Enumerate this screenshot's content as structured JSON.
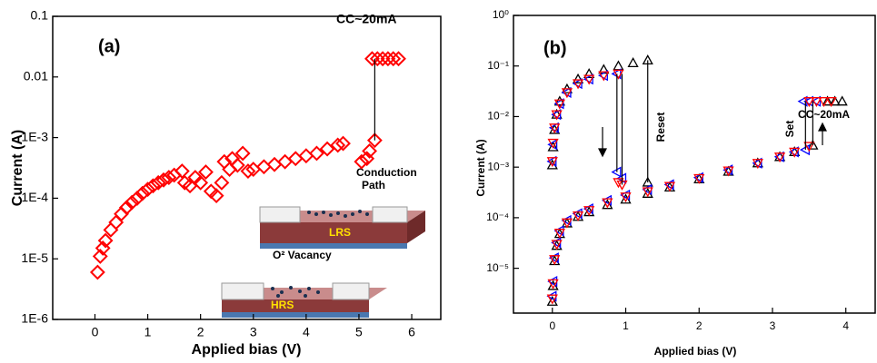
{
  "chart_data": [
    {
      "type": "scatter",
      "log_y": true,
      "label": "(a)",
      "annotations": [
        "CC~20mA"
      ],
      "inset_labels": [
        "Conduction",
        "Path",
        "LRS",
        "O² Vacancy",
        "HRS"
      ],
      "x_label": "Applied bias (V)",
      "y_label": "Current (A)",
      "xlim": [
        -0.8,
        6.55
      ],
      "xticks": [
        0,
        1,
        2,
        3,
        4,
        5,
        6
      ],
      "ylim": [
        1e-06,
        0.1
      ],
      "yticks": [
        {
          "value": 1e-06,
          "label": "1E-6"
        },
        {
          "value": 1e-05,
          "label": "1E-5"
        },
        {
          "value": 0.0001,
          "label": "1E-4"
        },
        {
          "value": 0.001,
          "label": "1E-3"
        },
        0.01,
        0.1
      ],
      "series": [
        {
          "color": "#ff0000",
          "marker": "diamond",
          "x": [
            0.05,
            0.1,
            0.15,
            0.2,
            0.3,
            0.4,
            0.5,
            0.6,
            0.7,
            0.8,
            0.9,
            1.0,
            1.1,
            1.2,
            1.3,
            1.4,
            1.5,
            1.65,
            1.7,
            1.8,
            1.9,
            2.0,
            2.1,
            2.2,
            2.3,
            2.4,
            2.45,
            2.55,
            2.6,
            2.7,
            2.8,
            2.9,
            3.0,
            3.2,
            3.4,
            3.6,
            3.8,
            4.0,
            4.2,
            4.4,
            4.6,
            4.7,
            5.05,
            5.15,
            5.2,
            5.3,
            5.25,
            5.35,
            5.45,
            5.55,
            5.65,
            5.75
          ],
          "values": [
            6e-06,
            1.1e-05,
            1.5e-05,
            2e-05,
            3e-05,
            4e-05,
            5.5e-05,
            7e-05,
            8.5e-05,
            0.0001,
            0.00012,
            0.00014,
            0.00016,
            0.00018,
            0.0002,
            0.00022,
            0.00024,
            0.00028,
            0.00018,
            0.00016,
            0.00022,
            0.00018,
            0.00027,
            0.00013,
            0.00011,
            0.00018,
            0.0004,
            0.0003,
            0.00045,
            0.00035,
            0.00055,
            0.00028,
            0.0003,
            0.00033,
            0.00036,
            0.0004,
            0.00045,
            0.0005,
            0.00055,
            0.00065,
            0.00075,
            0.0008,
            0.0004,
            0.00045,
            0.0006,
            0.0009,
            0.02,
            0.02,
            0.02,
            0.02,
            0.02,
            0.02
          ]
        },
        {
          "color": "#000000",
          "mode": "line",
          "x": [
            5.3,
            5.3
          ],
          "values": [
            0.0009,
            0.02
          ]
        }
      ]
    },
    {
      "type": "scatter",
      "log_y": true,
      "label": "(b)",
      "annotations": [
        "CC~20mA",
        "Reset",
        "Set"
      ],
      "x_label": "Applied bias (V)",
      "y_label": "Current (A)",
      "xlim": [
        -0.53,
        4.4
      ],
      "xticks": [
        0,
        1,
        2,
        3,
        4
      ],
      "ylim": [
        1.3e-06,
        1
      ],
      "yticks": [
        {
          "value": 1e-05,
          "label": "10⁻⁵"
        },
        {
          "value": 0.0001,
          "label": "10⁻⁴"
        },
        {
          "value": 0.001,
          "label": "10⁻³"
        },
        {
          "value": 0.01,
          "label": "10⁻²"
        },
        {
          "value": 0.1,
          "label": "10⁻¹"
        },
        {
          "value": 1,
          "label": "10⁰"
        }
      ],
      "series": [
        {
          "color": "#000000",
          "marker": "tri-up",
          "x": [
            0,
            0.01,
            0.03,
            0.06,
            0.1,
            0.2,
            0.35,
            0.5,
            0.75,
            1.0,
            1.3,
            1.6,
            2.0,
            2.4,
            2.8,
            3.1,
            3.3,
            3.55,
            3.75,
            3.85,
            3.95,
            0,
            0.01,
            0.03,
            0.06,
            0.1,
            0.2,
            0.35,
            0.5,
            0.7,
            0.9,
            1.1,
            1.3,
            1.3
          ],
          "values": [
            2.2e-06,
            4.5e-06,
            1.4e-05,
            2.8e-05,
            4.8e-05,
            7.8e-05,
            0.000105,
            0.00013,
            0.00018,
            0.00023,
            0.0003,
            0.0004,
            0.00058,
            0.00082,
            0.0012,
            0.0016,
            0.002,
            0.0027,
            0.02,
            0.02,
            0.02,
            0.0011,
            0.0025,
            0.0055,
            0.011,
            0.02,
            0.035,
            0.055,
            0.07,
            0.085,
            0.1,
            0.115,
            0.13,
            0.0005
          ]
        },
        {
          "color": "#0000ff",
          "marker": "tri-left",
          "x": [
            0,
            0.01,
            0.03,
            0.06,
            0.1,
            0.2,
            0.35,
            0.5,
            0.75,
            1.0,
            1.3,
            1.6,
            2.0,
            2.4,
            2.8,
            3.1,
            3.3,
            3.45,
            3.42,
            3.5,
            3.6,
            0,
            0.01,
            0.03,
            0.06,
            0.1,
            0.2,
            0.35,
            0.5,
            0.7,
            0.88,
            0.88,
            0.95
          ],
          "values": [
            2.8e-06,
            5.5e-06,
            1.6e-05,
            3.2e-05,
            5.5e-05,
            8.8e-05,
            0.00012,
            0.00015,
            0.00022,
            0.00028,
            0.00036,
            0.00045,
            0.00062,
            0.00088,
            0.0012,
            0.0016,
            0.002,
            0.0022,
            0.02,
            0.02,
            0.02,
            0.0013,
            0.0028,
            0.006,
            0.011,
            0.018,
            0.03,
            0.045,
            0.055,
            0.065,
            0.07,
            0.0008,
            0.0006
          ]
        },
        {
          "color": "#ff0000",
          "marker": "tri-down",
          "x": [
            0,
            0.01,
            0.03,
            0.06,
            0.1,
            0.2,
            0.35,
            0.5,
            0.75,
            1.0,
            1.3,
            1.6,
            2.0,
            2.4,
            2.8,
            3.1,
            3.3,
            3.5,
            3.5,
            3.6,
            3.7,
            3.8,
            0,
            0.01,
            0.03,
            0.06,
            0.1,
            0.2,
            0.35,
            0.5,
            0.7,
            0.9,
            0.95,
            0.9
          ],
          "values": [
            2.5e-06,
            5e-06,
            1.5e-05,
            3e-05,
            5e-05,
            8e-05,
            0.00011,
            0.00014,
            0.0002,
            0.00026,
            0.00033,
            0.00042,
            0.0006,
            0.00085,
            0.0012,
            0.0016,
            0.002,
            0.0026,
            0.02,
            0.02,
            0.02,
            0.02,
            0.0013,
            0.003,
            0.006,
            0.011,
            0.018,
            0.03,
            0.045,
            0.055,
            0.065,
            0.07,
            0.00045,
            0.0005
          ]
        },
        {
          "color": "#000000",
          "mode": "line",
          "x": [
            1.3,
            1.3
          ],
          "values": [
            0.13,
            0.0005
          ]
        },
        {
          "color": "#000000",
          "mode": "line",
          "x": [
            0.88,
            0.88
          ],
          "values": [
            0.07,
            0.0008
          ]
        },
        {
          "color": "#000000",
          "mode": "line",
          "x": [
            0.95,
            0.95
          ],
          "values": [
            0.07,
            0.00045
          ]
        },
        {
          "color": "#000000",
          "mode": "line",
          "x": [
            3.45,
            3.45
          ],
          "values": [
            0.0022,
            0.02
          ]
        },
        {
          "color": "#000000",
          "mode": "line",
          "x": [
            3.55,
            3.55
          ],
          "values": [
            0.0027,
            0.02
          ]
        }
      ]
    }
  ]
}
